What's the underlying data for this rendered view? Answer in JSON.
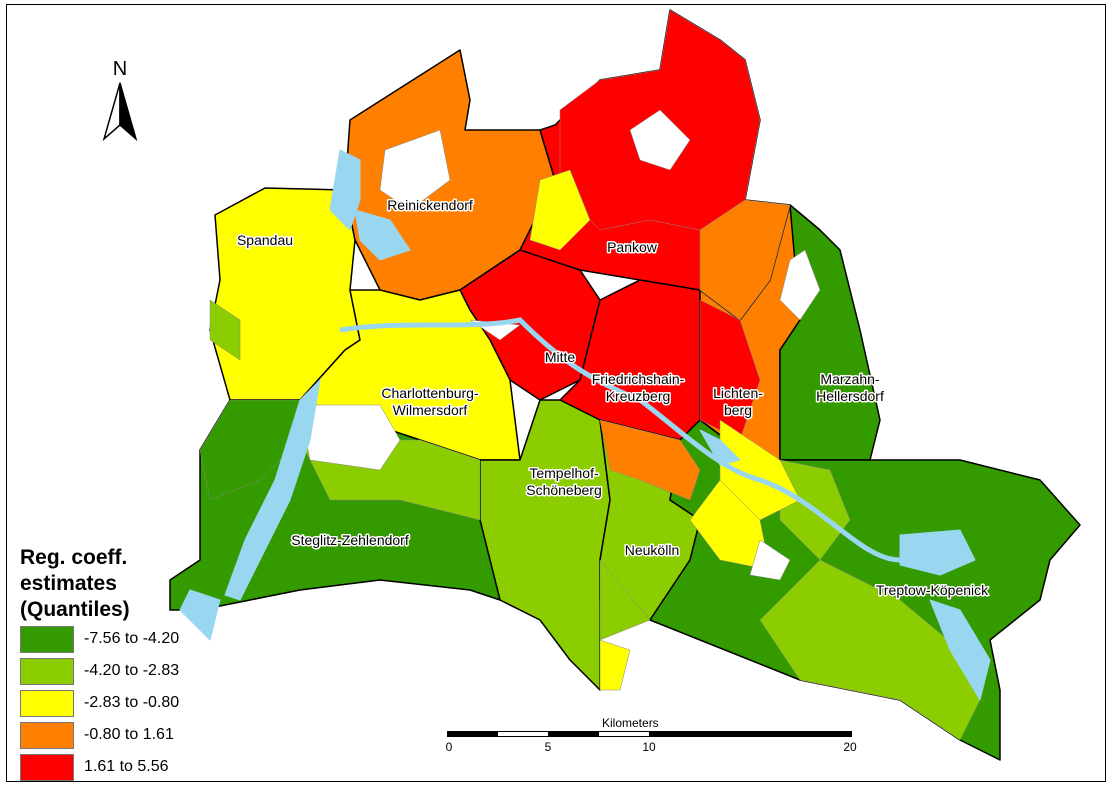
{
  "map": {
    "districts": [
      {
        "name": "Spandau"
      },
      {
        "name": "Reinickendorf"
      },
      {
        "name": "Pankow"
      },
      {
        "name": "Mitte"
      },
      {
        "name": "Friedrichshain-\nKreuzberg"
      },
      {
        "name": "Lichten-\nberg"
      },
      {
        "name": "Marzahn-\nHellersdorf"
      },
      {
        "name": "Charlottenburg-\nWilmersdorf"
      },
      {
        "name": "Tempelhof-\nSchöneberg"
      },
      {
        "name": "Neukölln"
      },
      {
        "name": "Steglitz-Zehlendorf"
      },
      {
        "name": "Treptow-Köpenick"
      }
    ],
    "water_color": "#99d6f0",
    "nodata_color": "#ffffff"
  },
  "north_arrow": {
    "label": "N"
  },
  "legend": {
    "title": "Reg. coeff. estimates (Quantiles)",
    "classes": [
      {
        "label": "-7.56 to -4.20",
        "color": "#339a00"
      },
      {
        "label": "-4.20 to -2.83",
        "color": "#8ccd00"
      },
      {
        "label": "-2.83 to -0.80",
        "color": "#ffff00"
      },
      {
        "label": "-0.80 to 1.61",
        "color": "#ff8000"
      },
      {
        "label": "1.61 to 5.56",
        "color": "#ff0000"
      }
    ]
  },
  "scale_bar": {
    "title": "Kilometers",
    "ticks": [
      "0",
      "5",
      "10",
      "20"
    ],
    "max_km": 20
  }
}
